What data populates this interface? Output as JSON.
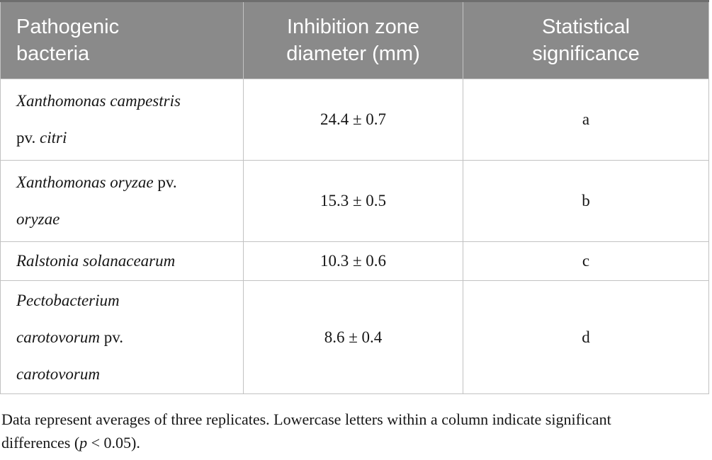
{
  "table": {
    "columns": [
      {
        "id": "bacteria",
        "label": "Pathogenic bacteria"
      },
      {
        "id": "diameter",
        "label": "Inhibition zone diameter (mm)"
      },
      {
        "id": "significance",
        "label": "Statistical significance"
      }
    ],
    "rows": [
      {
        "bacteria_plain": "Xanthomonas campestris pv. citri",
        "name_lines": [
          [
            {
              "text": "Xanthomonas campestris",
              "italic": true
            }
          ],
          [
            {
              "text": "pv. ",
              "italic": false
            },
            {
              "text": "citri",
              "italic": true
            }
          ]
        ],
        "diameter": "24.4 ± 0.7",
        "significance": "a"
      },
      {
        "bacteria_plain": "Xanthomonas oryzae pv. oryzae",
        "name_lines": [
          [
            {
              "text": "Xanthomonas oryzae",
              "italic": true
            },
            {
              "text": " pv.",
              "italic": false
            }
          ],
          [
            {
              "text": "oryzae",
              "italic": true
            }
          ]
        ],
        "diameter": "15.3 ± 0.5",
        "significance": "b"
      },
      {
        "bacteria_plain": "Ralstonia solanacearum",
        "name_lines": [
          [
            {
              "text": "Ralstonia solanacearum",
              "italic": true
            }
          ]
        ],
        "diameter": "10.3 ± 0.6",
        "significance": "c"
      },
      {
        "bacteria_plain": "Pectobacterium carotovorum pv. carotovorum",
        "name_lines": [
          [
            {
              "text": "Pectobacterium",
              "italic": true
            }
          ],
          [
            {
              "text": "carotovorum",
              "italic": true
            },
            {
              "text": " pv.",
              "italic": false
            }
          ],
          [
            {
              "text": "carotovorum",
              "italic": true
            }
          ]
        ],
        "diameter": "8.6 ± 0.4",
        "significance": "d"
      }
    ]
  },
  "footnote": {
    "segments": [
      {
        "text": "Data represent averages of three replicates. Lowercase letters within a column indicate significant differences (",
        "italic": false
      },
      {
        "text": "p",
        "italic": true
      },
      {
        "text": " < 0.05).",
        "italic": false
      }
    ]
  },
  "chart_data": {
    "type": "table",
    "title": "Inhibition zone diameter (mm) of pathogenic bacteria",
    "categories": [
      "Xanthomonas campestris pv. citri",
      "Xanthomonas oryzae pv. oryzae",
      "Ralstonia solanacearum",
      "Pectobacterium carotovorum pv. carotovorum"
    ],
    "values": [
      24.4,
      15.3,
      10.3,
      8.6
    ],
    "errors": [
      0.7,
      0.5,
      0.6,
      0.4
    ],
    "significance_letters": [
      "a",
      "b",
      "c",
      "d"
    ]
  },
  "colors": {
    "header_bg": "#8a8a8a",
    "header_top_border": "#6e6e6e",
    "header_text": "#ffffff",
    "cell_border": "#c2c2c2",
    "body_text": "#161616",
    "page_bg": "#ffffff"
  }
}
